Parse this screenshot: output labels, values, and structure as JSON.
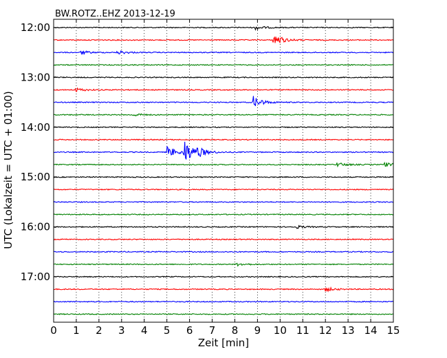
{
  "chart_data": {
    "type": "line",
    "title": "BW.ROTZ..EHZ 2013-12-19",
    "xlabel": "Zeit  [min]",
    "ylabel": "UTC (Lokalzeit = UTC + 01:00)",
    "xlim": [
      0,
      15
    ],
    "x_ticks": [
      "0",
      "1",
      "2",
      "3",
      "4",
      "5",
      "6",
      "7",
      "8",
      "9",
      "10",
      "11",
      "12",
      "13",
      "14",
      "15"
    ],
    "y_ticks": [
      {
        "label": "12:00",
        "trace_index": 0
      },
      {
        "label": "13:00",
        "trace_index": 4
      },
      {
        "label": "14:00",
        "trace_index": 8
      },
      {
        "label": "15:00",
        "trace_index": 12
      },
      {
        "label": "16:00",
        "trace_index": 16
      },
      {
        "label": "17:00",
        "trace_index": 20
      }
    ],
    "grid": "vertical-dotted",
    "trace_minutes": 15,
    "series": [
      {
        "start": "12:00",
        "color": "#000000",
        "events": [
          {
            "t": 8.9,
            "amp": 3
          }
        ]
      },
      {
        "start": "12:15",
        "color": "#ff0000",
        "events": [
          {
            "t": 9.7,
            "amp": 10
          }
        ]
      },
      {
        "start": "12:30",
        "color": "#0000ff",
        "events": [
          {
            "t": 1.2,
            "amp": 2.5
          },
          {
            "t": 2.8,
            "amp": 3
          }
        ]
      },
      {
        "start": "12:45",
        "color": "#008000",
        "events": []
      },
      {
        "start": "13:00",
        "color": "#000000",
        "events": []
      },
      {
        "start": "13:15",
        "color": "#ff0000",
        "events": [
          {
            "t": 0.9,
            "amp": 3
          }
        ]
      },
      {
        "start": "13:30",
        "color": "#0000ff",
        "events": [
          {
            "t": 8.8,
            "amp": 9
          }
        ]
      },
      {
        "start": "13:45",
        "color": "#008000",
        "events": [
          {
            "t": 3.5,
            "amp": 2
          }
        ]
      },
      {
        "start": "14:00",
        "color": "#000000",
        "events": []
      },
      {
        "start": "14:15",
        "color": "#ff0000",
        "events": []
      },
      {
        "start": "14:30",
        "color": "#0000ff",
        "events": [
          {
            "t": 5.0,
            "amp": 9
          },
          {
            "t": 5.75,
            "amp": 18
          },
          {
            "t": 6.3,
            "amp": 6
          }
        ]
      },
      {
        "start": "14:45",
        "color": "#008000",
        "events": [
          {
            "t": 12.5,
            "amp": 3
          },
          {
            "t": 14.6,
            "amp": 3
          }
        ]
      },
      {
        "start": "15:00",
        "color": "#000000",
        "events": []
      },
      {
        "start": "15:15",
        "color": "#ff0000",
        "events": []
      },
      {
        "start": "15:30",
        "color": "#0000ff",
        "events": []
      },
      {
        "start": "15:45",
        "color": "#008000",
        "events": []
      },
      {
        "start": "16:00",
        "color": "#000000",
        "events": [
          {
            "t": 10.7,
            "amp": 2
          }
        ]
      },
      {
        "start": "16:15",
        "color": "#ff0000",
        "events": []
      },
      {
        "start": "16:30",
        "color": "#0000ff",
        "events": []
      },
      {
        "start": "16:45",
        "color": "#008000",
        "events": [
          {
            "t": 8.1,
            "amp": 2
          }
        ]
      },
      {
        "start": "17:00",
        "color": "#000000",
        "events": []
      },
      {
        "start": "17:15",
        "color": "#ff0000",
        "events": [
          {
            "t": 12.0,
            "amp": 3
          }
        ]
      },
      {
        "start": "17:30",
        "color": "#0000ff",
        "events": []
      },
      {
        "start": "17:45",
        "color": "#008000",
        "events": []
      }
    ]
  }
}
